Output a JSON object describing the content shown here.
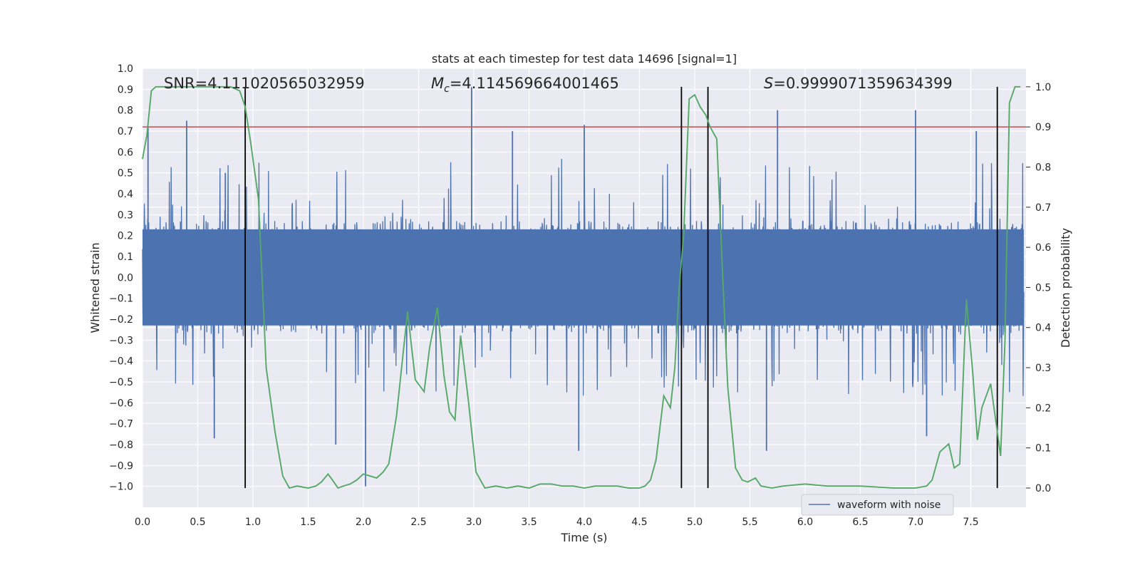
{
  "chart_data": {
    "type": "line",
    "title": "stats at each timestep for test data 14696 [signal=1]",
    "xlabel": "Time (s)",
    "ylabel": "Whitened strain",
    "y2label": "Detection probability",
    "xlim": [
      0.0,
      8.0
    ],
    "ylim": [
      -1.1,
      1.0
    ],
    "y2lim": [
      -0.048,
      1.0459
    ],
    "xticks": [
      "0.0",
      "0.5",
      "1.0",
      "1.5",
      "2.0",
      "2.5",
      "3.0",
      "3.5",
      "4.0",
      "4.5",
      "5.0",
      "5.5",
      "6.0",
      "6.5",
      "7.0",
      "7.5"
    ],
    "yticks": [
      "1.0",
      "0.9",
      "0.8",
      "0.7",
      "0.6",
      "0.5",
      "0.4",
      "0.3",
      "0.2",
      "0.1",
      "0.0",
      "−0.1",
      "−0.2",
      "−0.3",
      "−0.4",
      "−0.5",
      "−0.6",
      "−0.7",
      "−0.8",
      "−0.9",
      "−1.0"
    ],
    "y2ticks": [
      "1.0",
      "0.9",
      "0.8",
      "0.7",
      "0.6",
      "0.5",
      "0.4",
      "0.3",
      "0.2",
      "0.1",
      "0.0"
    ],
    "annotations": {
      "snr": "SNR=4.111020565032959",
      "mc_symbol": "M",
      "mc_sub": "c",
      "mc_value": "=4.114569664001465",
      "s_symbol": "S",
      "s_value": "=0.9999071359634399"
    },
    "threshold": {
      "value": 0.9,
      "axis": "y2",
      "color": "#c44e52"
    },
    "vertical_lines": [
      0.93,
      4.88,
      5.12,
      7.74
    ],
    "series": [
      {
        "name": "waveform with noise",
        "axis": "y",
        "color": "#4c72b0",
        "noise_amplitude": 0.27,
        "peaks": [
          {
            "t": 0.05,
            "v": 0.72
          },
          {
            "t": 0.4,
            "v": 0.75
          },
          {
            "t": 0.75,
            "v": 0.5
          },
          {
            "t": 2.98,
            "v": 0.91
          },
          {
            "t": 3.35,
            "v": 0.7
          },
          {
            "t": 4.0,
            "v": 0.73
          },
          {
            "t": 5.75,
            "v": 0.8
          },
          {
            "t": 7.0,
            "v": 0.8
          },
          {
            "t": 7.55,
            "v": 0.7
          },
          {
            "t": 0.65,
            "v": -0.77
          },
          {
            "t": 1.75,
            "v": -0.8
          },
          {
            "t": 2.02,
            "v": -1.0
          },
          {
            "t": 3.95,
            "v": -0.83
          },
          {
            "t": 5.65,
            "v": -0.83
          },
          {
            "t": 7.1,
            "v": -0.76
          }
        ]
      },
      {
        "name": "detection probability",
        "axis": "y2",
        "color": "#55a868",
        "x": [
          0.0,
          0.04,
          0.08,
          0.12,
          0.3,
          0.5,
          0.7,
          0.8,
          0.88,
          0.93,
          0.98,
          1.05,
          1.12,
          1.2,
          1.27,
          1.33,
          1.4,
          1.5,
          1.57,
          1.62,
          1.68,
          1.72,
          1.77,
          1.82,
          1.88,
          1.94,
          2.0,
          2.06,
          2.12,
          2.18,
          2.23,
          2.3,
          2.4,
          2.47,
          2.55,
          2.6,
          2.67,
          2.73,
          2.78,
          2.83,
          2.88,
          2.95,
          3.02,
          3.1,
          3.2,
          3.3,
          3.4,
          3.5,
          3.6,
          3.7,
          3.8,
          3.9,
          4.0,
          4.1,
          4.2,
          4.3,
          4.4,
          4.5,
          4.55,
          4.6,
          4.65,
          4.72,
          4.78,
          4.82,
          4.86,
          4.9,
          4.95,
          5.0,
          5.05,
          5.1,
          5.14,
          5.2,
          5.25,
          5.3,
          5.37,
          5.43,
          5.48,
          5.55,
          5.6,
          5.7,
          5.8,
          6.0,
          6.2,
          6.5,
          6.8,
          7.0,
          7.1,
          7.15,
          7.22,
          7.3,
          7.35,
          7.4,
          7.46,
          7.52,
          7.56,
          7.6,
          7.68,
          7.72,
          7.77,
          7.81,
          7.85,
          7.9,
          7.95
        ],
        "y": [
          0.82,
          0.88,
          0.99,
          1.0,
          1.0,
          1.0,
          1.0,
          1.0,
          0.99,
          0.95,
          0.86,
          0.72,
          0.3,
          0.14,
          0.03,
          0.0,
          0.005,
          0.0,
          0.005,
          0.015,
          0.035,
          0.02,
          0.0,
          0.005,
          0.01,
          0.02,
          0.035,
          0.03,
          0.025,
          0.04,
          0.06,
          0.18,
          0.44,
          0.27,
          0.24,
          0.35,
          0.45,
          0.28,
          0.19,
          0.17,
          0.38,
          0.22,
          0.04,
          0.0,
          0.005,
          0.0,
          0.005,
          0.0,
          0.01,
          0.01,
          0.005,
          0.005,
          0.0,
          0.005,
          0.005,
          0.005,
          0.0,
          0.0,
          0.005,
          0.02,
          0.07,
          0.23,
          0.2,
          0.3,
          0.5,
          0.63,
          0.97,
          0.98,
          0.95,
          0.93,
          0.9,
          0.87,
          0.55,
          0.25,
          0.05,
          0.02,
          0.015,
          0.025,
          0.005,
          0.0,
          0.005,
          0.01,
          0.005,
          0.005,
          0.0,
          0.0,
          0.005,
          0.02,
          0.09,
          0.11,
          0.05,
          0.06,
          0.47,
          0.28,
          0.12,
          0.2,
          0.26,
          0.18,
          0.08,
          0.37,
          0.96,
          1.0,
          1.0
        ]
      }
    ],
    "legend": {
      "label": "waveform with noise",
      "position": "lower-right"
    }
  },
  "colors": {
    "plot_background": "#eaeaf2",
    "grid": "#ffffff",
    "vline": "#000000"
  }
}
